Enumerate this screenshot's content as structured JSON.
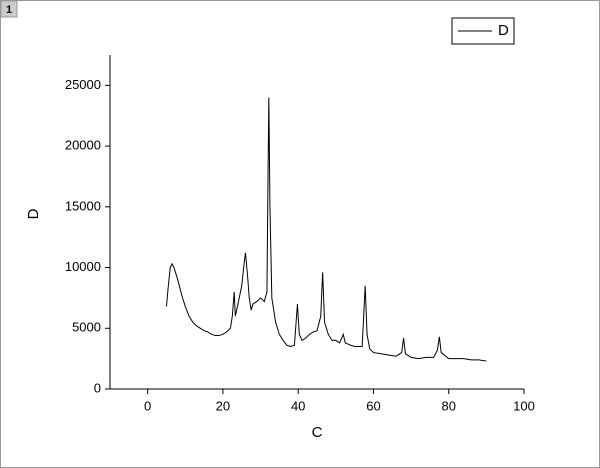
{
  "window": {
    "title": "1"
  },
  "chart_data": {
    "type": "line",
    "xlabel": "C",
    "ylabel": "D",
    "x": [
      5,
      5.5,
      6,
      6.5,
      7,
      8,
      9,
      10,
      11,
      12,
      13,
      14,
      15,
      16,
      17,
      18,
      19,
      20,
      21,
      22,
      22.5,
      23,
      23.3,
      24,
      25,
      25.7,
      26,
      26.5,
      27,
      27.5,
      28,
      29,
      30,
      31,
      31.7,
      32,
      32.2,
      32.5,
      33,
      34,
      35,
      36,
      37,
      38,
      39,
      39.8,
      40.3,
      41,
      42,
      43,
      44,
      45,
      46,
      46.5,
      47,
      48,
      49,
      50,
      51,
      52,
      52.5,
      54,
      55,
      56,
      57,
      57.8,
      58.3,
      59,
      60,
      62,
      64,
      66,
      67.5,
      68,
      68.5,
      70,
      72,
      74,
      76,
      77,
      77.5,
      78,
      80,
      82,
      84,
      86,
      88,
      90
    ],
    "series": [
      {
        "name": "D",
        "color": "#000000",
        "values": [
          6800,
          8500,
          10000,
          10300,
          10000,
          9000,
          7800,
          6800,
          6000,
          5500,
          5200,
          5000,
          4800,
          4700,
          4500,
          4400,
          4400,
          4500,
          4700,
          5000,
          6000,
          8000,
          6000,
          7000,
          8500,
          10500,
          11200,
          9500,
          7500,
          6500,
          7000,
          7200,
          7500,
          7200,
          8000,
          18000,
          24000,
          15000,
          7500,
          5500,
          4500,
          4000,
          3600,
          3500,
          3600,
          7000,
          4500,
          4000,
          4200,
          4500,
          4700,
          4800,
          6000,
          9600,
          5500,
          4500,
          4000,
          4000,
          3800,
          4500,
          3800,
          3600,
          3500,
          3500,
          3500,
          8500,
          4500,
          3300,
          3000,
          2900,
          2800,
          2700,
          3000,
          4200,
          2900,
          2600,
          2500,
          2600,
          2600,
          3200,
          4300,
          3000,
          2500,
          2500,
          2500,
          2400,
          2400,
          2300
        ]
      }
    ],
    "xlim": [
      -10,
      100
    ],
    "ylim": [
      0,
      27500
    ],
    "xticks": [
      0,
      20,
      40,
      60,
      80,
      100
    ],
    "yticks": [
      0,
      5000,
      10000,
      15000,
      20000,
      25000
    ]
  }
}
